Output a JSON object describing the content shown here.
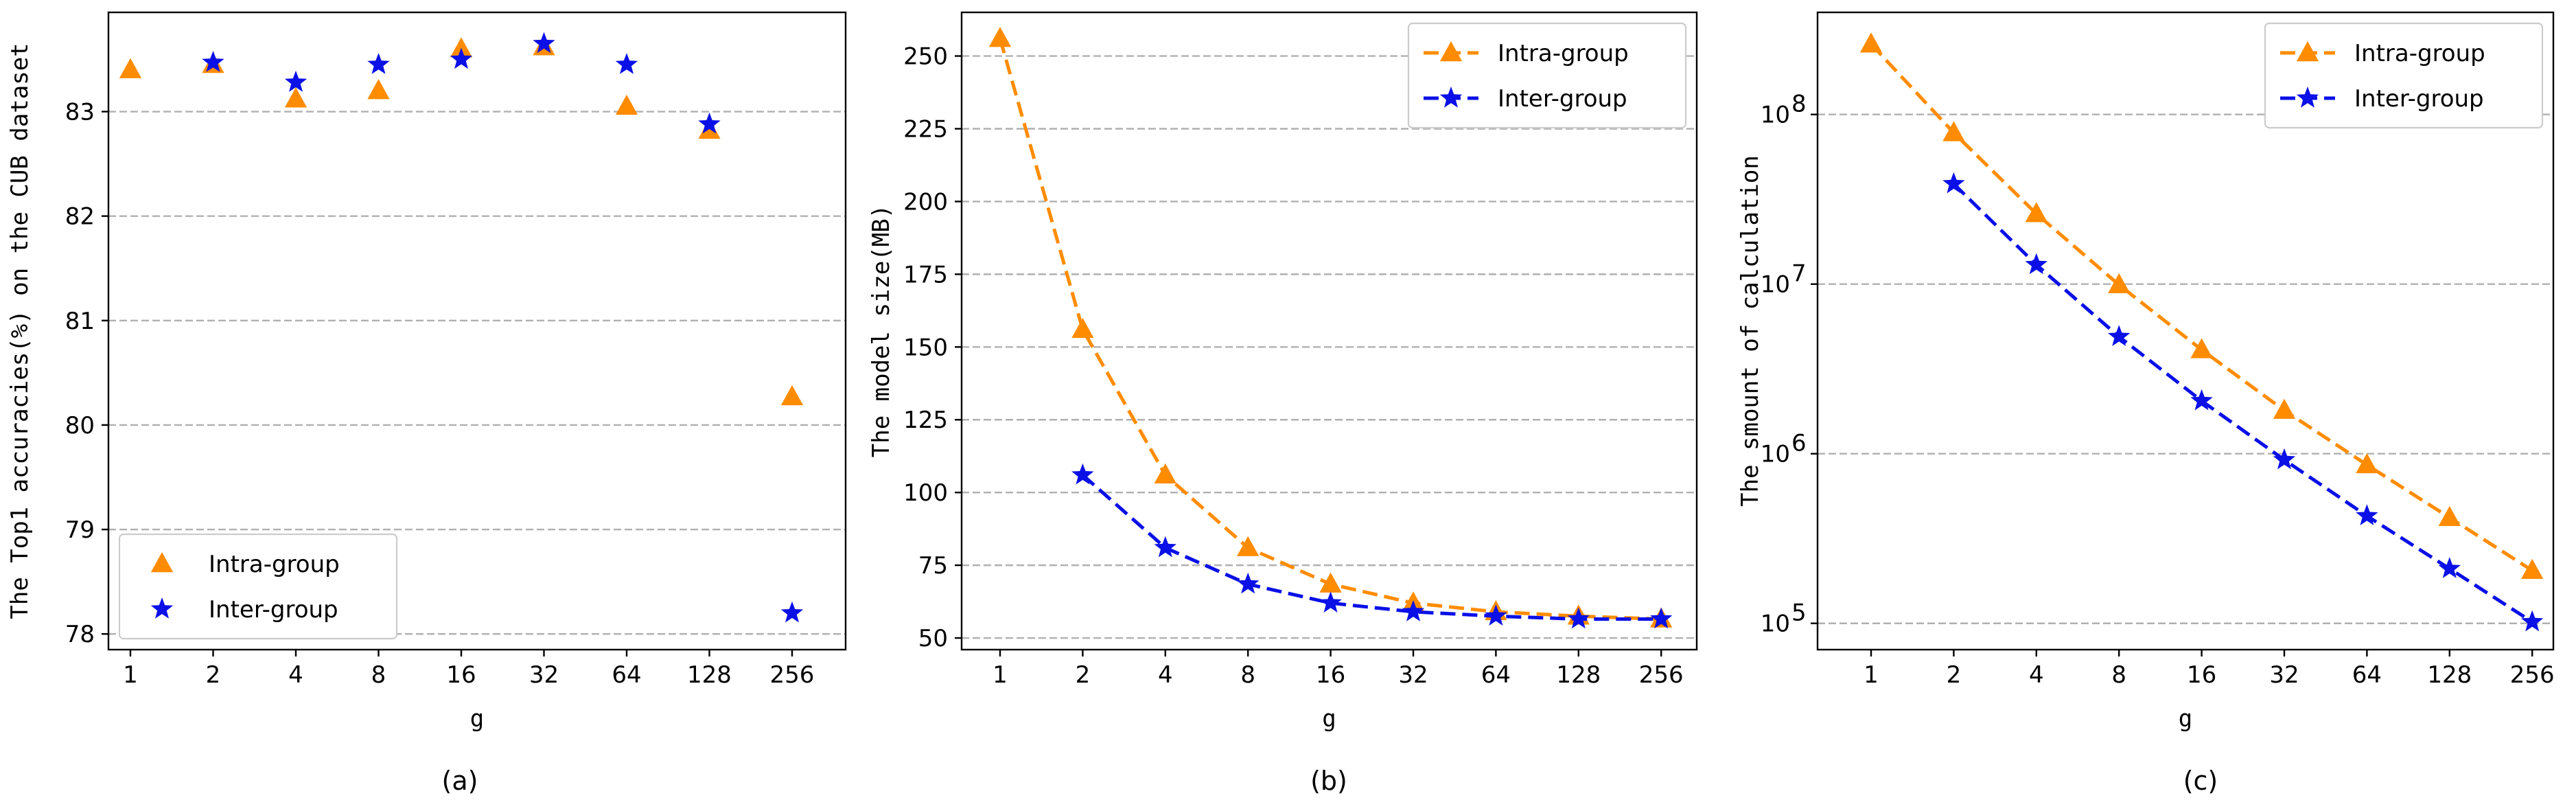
{
  "colors": {
    "intra": "#ff8c00",
    "inter": "#0a10e6"
  },
  "chart_data": [
    {
      "type": "scatter",
      "caption": "(a)",
      "xlabel": "g",
      "ylabel": "The Top1 accuracies(%) on the CUB dataset",
      "categories": [
        "1",
        "2",
        "4",
        "8",
        "16",
        "32",
        "64",
        "128",
        "256"
      ],
      "ylim": [
        77.85,
        83.95
      ],
      "yticks": [
        78,
        79,
        80,
        81,
        82,
        83
      ],
      "ytick_labels": [
        "78",
        "79",
        "80",
        "81",
        "82",
        "83"
      ],
      "legend_loc": "lower-left",
      "series": [
        {
          "name": "Intra-group",
          "marker": "triangle",
          "color_key": "intra",
          "values": [
            83.4,
            83.45,
            83.12,
            83.2,
            83.6,
            83.62,
            83.05,
            82.82,
            80.27
          ]
        },
        {
          "name": "Inter-group",
          "marker": "star",
          "color_key": "inter",
          "values": [
            null,
            83.47,
            83.28,
            83.45,
            83.5,
            83.65,
            83.45,
            82.88,
            78.2
          ]
        }
      ]
    },
    {
      "type": "line",
      "caption": "(b)",
      "xlabel": "g",
      "ylabel": "The model size(MB)",
      "categories": [
        "1",
        "2",
        "4",
        "8",
        "16",
        "32",
        "64",
        "128",
        "256"
      ],
      "ylim": [
        46,
        265
      ],
      "yticks": [
        50,
        75,
        100,
        125,
        150,
        175,
        200,
        225,
        250
      ],
      "ytick_labels": [
        "50",
        "75",
        "100",
        "125",
        "150",
        "175",
        "200",
        "225",
        "250"
      ],
      "legend_loc": "upper-right",
      "series": [
        {
          "name": "Intra-group",
          "marker": "triangle",
          "color_key": "intra",
          "values": [
            256,
            156,
            106,
            81,
            68.5,
            62,
            59,
            57.5,
            56.5
          ]
        },
        {
          "name": "Inter-group",
          "marker": "star",
          "color_key": "inter",
          "values": [
            null,
            106,
            81,
            68.5,
            62,
            59,
            57.5,
            56.5,
            56.5
          ]
        }
      ]
    },
    {
      "type": "line",
      "scale": "log",
      "caption": "(c)",
      "xlabel": "g",
      "ylabel": "The smount of calculation",
      "categories": [
        "1",
        "2",
        "4",
        "8",
        "16",
        "32",
        "64",
        "128",
        "256"
      ],
      "ylim": [
        70000,
        400000000
      ],
      "yticks": [
        100000,
        1000000,
        10000000,
        100000000
      ],
      "ytick_labels": [
        "10",
        "10",
        "10",
        "10"
      ],
      "ytick_exponents": [
        "5",
        "6",
        "7",
        "8"
      ],
      "legend_loc": "upper-right",
      "series": [
        {
          "name": "Intra-group",
          "marker": "triangle",
          "color_key": "intra",
          "values": [
            260000000,
            78000000,
            26000000,
            9900000,
            4100000,
            1800000,
            860000,
            420000,
            205000
          ]
        },
        {
          "name": "Inter-group",
          "marker": "star",
          "color_key": "inter",
          "values": [
            null,
            39000000,
            13000000,
            4900000,
            2050000,
            920000,
            430000,
            210000,
            102000
          ]
        }
      ]
    }
  ]
}
